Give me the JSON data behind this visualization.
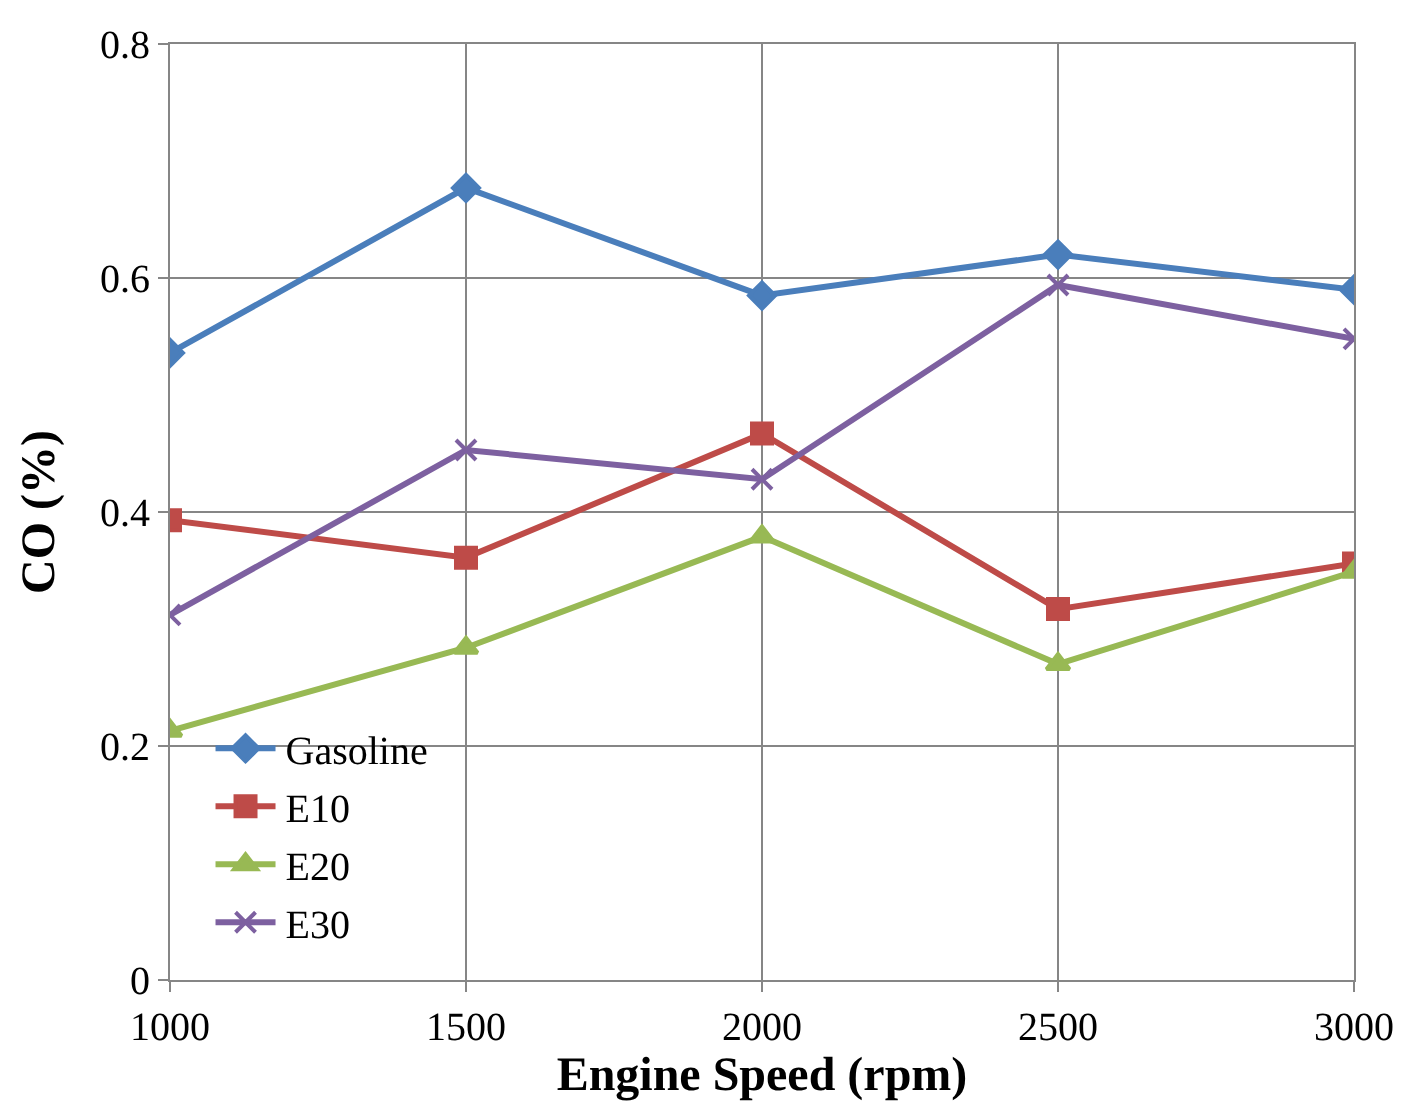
{
  "chart_data": {
    "type": "line",
    "xlabel": "Engine Speed (rpm)",
    "ylabel": "CO (%)",
    "x": [
      1000,
      1500,
      2000,
      2500,
      3000
    ],
    "xlim": [
      1000,
      3000
    ],
    "xticks": [
      1000,
      1500,
      2000,
      2500,
      3000
    ],
    "ylim": [
      0,
      0.8
    ],
    "yticks": [
      0,
      0.2,
      0.4,
      0.6,
      0.8
    ],
    "grid": true,
    "legend": "bottom left",
    "series": [
      {
        "name": "Gasoline",
        "color": "#4a7ebb",
        "marker": "diamond",
        "values": [
          0.536,
          0.677,
          0.585,
          0.62,
          0.59
        ]
      },
      {
        "name": "E10",
        "color": "#be4b48",
        "marker": "square",
        "values": [
          0.393,
          0.361,
          0.467,
          0.317,
          0.356
        ]
      },
      {
        "name": "E20",
        "color": "#98b954",
        "marker": "triangle",
        "values": [
          0.213,
          0.284,
          0.379,
          0.27,
          0.349
        ]
      },
      {
        "name": "E30",
        "color": "#7d60a0",
        "marker": "cross",
        "values": [
          0.312,
          0.453,
          0.428,
          0.594,
          0.548
        ]
      }
    ]
  }
}
